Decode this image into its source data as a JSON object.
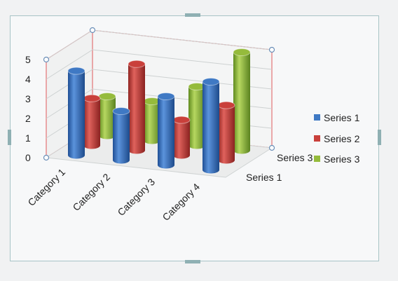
{
  "chart_data": {
    "type": "bar",
    "subtype": "3d-column",
    "categories": [
      "Category 1",
      "Category 2",
      "Category 3",
      "Category 4"
    ],
    "series": [
      {
        "name": "Series 1",
        "values": [
          4.3,
          2.5,
          3.5,
          4.5
        ]
      },
      {
        "name": "Series 2",
        "values": [
          2.4,
          4.4,
          1.8,
          2.8
        ]
      },
      {
        "name": "Series 3",
        "values": [
          2,
          2,
          3,
          5
        ]
      }
    ],
    "depth_labels": [
      "Series 1",
      "Series 3"
    ],
    "y_ticks": [
      "0",
      "1",
      "2",
      "3",
      "4",
      "5"
    ],
    "ylim": [
      0,
      5
    ],
    "grid": true,
    "legend_position": "right",
    "colors": {
      "Series 1": "#3f79c4",
      "Series 2": "#c9403b",
      "Series 3": "#95bb3c",
      "selection_walls": "#e0595b",
      "frame": "#a8c4c6"
    }
  }
}
